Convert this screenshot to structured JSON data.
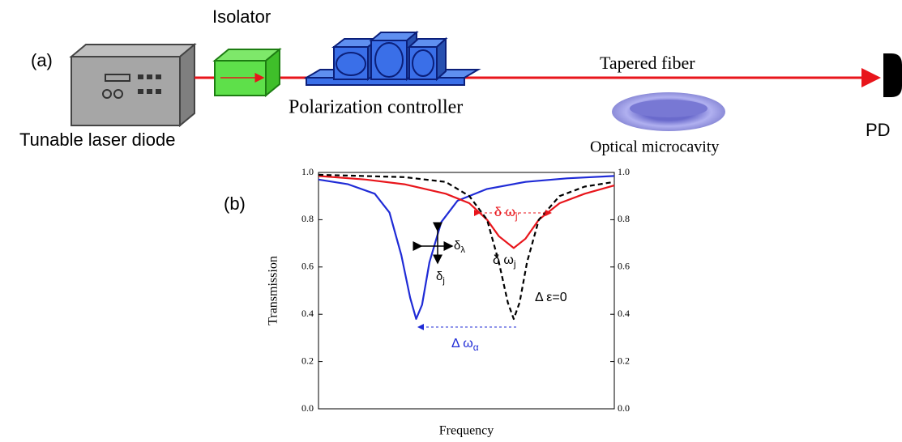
{
  "diagram": {
    "panel_a": "(a)",
    "isolator": "Isolator",
    "laser": "Tunable laser diode",
    "polarization": "Polarization controller",
    "fiber": "Tapered fiber",
    "cavity": "Optical microcavity",
    "detector": "PD"
  },
  "chart_data": {
    "type": "line",
    "panel": "(b)",
    "xlabel": "Frequency",
    "ylabel": "Transmission",
    "xlim": [
      0,
      100
    ],
    "ylim": [
      0,
      1
    ],
    "yticks": [
      {
        "value": 0,
        "label": "0.0"
      },
      0.2,
      0.4,
      0.6,
      0.8,
      {
        "value": 1,
        "label": "1.0"
      }
    ],
    "y2lim": [
      0,
      1
    ],
    "y2ticks": [
      {
        "value": 0,
        "label": "0.0"
      },
      0.2,
      0.4,
      0.6,
      0.8,
      {
        "value": 1,
        "label": "1.0"
      }
    ],
    "series": [
      {
        "color": "#1f2bd6",
        "dash": false,
        "x": [
          0,
          10,
          19,
          24,
          28,
          31,
          33,
          35,
          37.5,
          41.5,
          47,
          57,
          70,
          84,
          100
        ],
        "values": [
          0.97,
          0.95,
          0.91,
          0.83,
          0.65,
          0.47,
          0.38,
          0.44,
          0.62,
          0.79,
          0.88,
          0.93,
          0.96,
          0.975,
          0.985
        ]
      },
      {
        "color": "#e8151b",
        "dash": false,
        "x": [
          0,
          16,
          29,
          43,
          51,
          57,
          61,
          66,
          70,
          74.5,
          81.5,
          90,
          100
        ],
        "values": [
          0.985,
          0.97,
          0.95,
          0.91,
          0.87,
          0.8,
          0.73,
          0.68,
          0.72,
          0.8,
          0.87,
          0.91,
          0.945
        ]
      },
      {
        "color": "#000000",
        "dash": true,
        "x": [
          0,
          29,
          43,
          51,
          57,
          61,
          64,
          66,
          68,
          70.5,
          74.5,
          81.5,
          90,
          100
        ],
        "values": [
          0.99,
          0.98,
          0.96,
          0.9,
          0.8,
          0.62,
          0.45,
          0.38,
          0.45,
          0.62,
          0.8,
          0.9,
          0.94,
          0.96
        ]
      }
    ],
    "annotations": [
      {
        "text": "δ ω",
        "sub": "j′",
        "color": "#e8151b"
      },
      {
        "text": "δ ω",
        "sub": "j",
        "color": "#000000"
      },
      {
        "text": "Δ ε=0",
        "color": "#000000"
      },
      {
        "text": "Δ ω",
        "sub": "α",
        "color": "#1f2bd6"
      },
      {
        "text": "δ",
        "sub": "λ",
        "color": "#000000"
      },
      {
        "text": "δ",
        "sub": "j",
        "color": "#000000"
      }
    ]
  }
}
